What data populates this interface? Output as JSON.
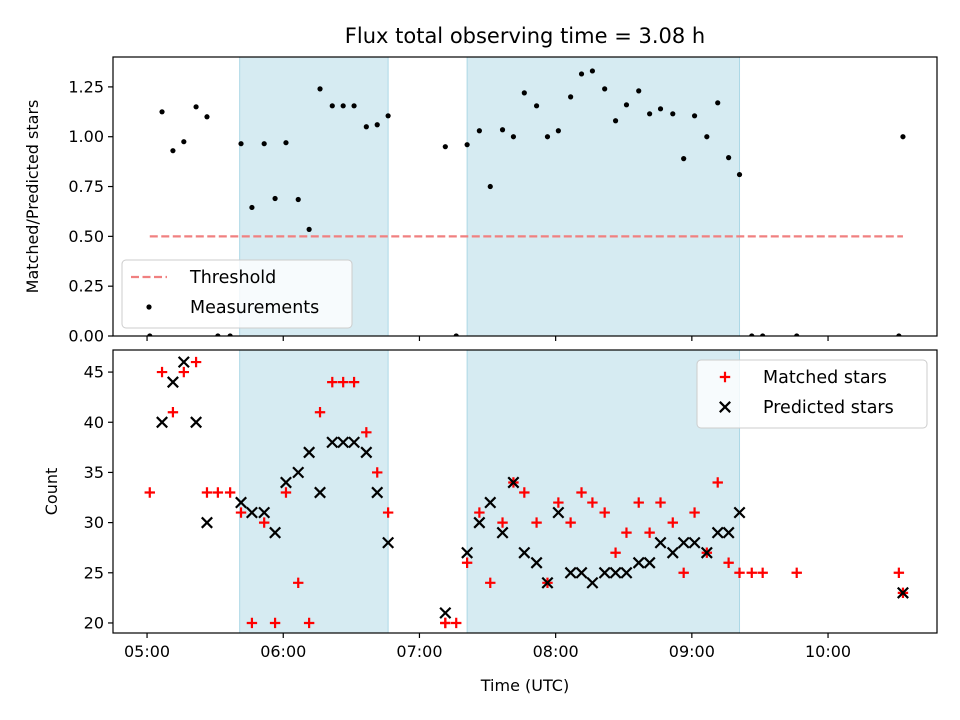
{
  "chart_data": [
    {
      "type": "scatter",
      "title": "Flux total observing time = 3.08 h",
      "ylabel": "Matched/Predicted stars",
      "xlabel": "",
      "xlim": [
        4.75,
        10.8
      ],
      "ylim": [
        0,
        1.4
      ],
      "yticks": [
        0,
        0.25,
        0.5,
        0.75,
        1.0,
        1.25
      ],
      "ytick_labels": [
        "0.00",
        "0.25",
        "0.50",
        "0.75",
        "1.00",
        "1.25"
      ],
      "shaded_spans": [
        [
          5.68,
          6.77
        ],
        [
          7.35,
          9.35
        ]
      ],
      "threshold": {
        "name": "Threshold",
        "value": 0.5,
        "x_range": [
          5.02,
          10.55
        ],
        "color": "#f08080"
      },
      "series": [
        {
          "name": "Measurements",
          "color": "#000000",
          "x": [
            5.02,
            5.11,
            5.19,
            5.27,
            5.36,
            5.44,
            5.52,
            5.61,
            5.69,
            5.77,
            5.86,
            5.94,
            6.02,
            6.11,
            6.19,
            6.27,
            6.36,
            6.44,
            6.52,
            6.61,
            6.69,
            6.77,
            7.19,
            7.27,
            7.35,
            7.44,
            7.52,
            7.61,
            7.69,
            7.77,
            7.86,
            7.94,
            8.02,
            8.11,
            8.19,
            8.27,
            8.36,
            8.44,
            8.52,
            8.61,
            8.69,
            8.77,
            8.86,
            8.94,
            9.02,
            9.11,
            9.19,
            9.27,
            9.35,
            9.44,
            9.52,
            9.77,
            10.52,
            10.55
          ],
          "y": [
            0.0,
            1.125,
            0.93,
            0.975,
            1.15,
            1.1,
            0.0,
            0.0,
            0.965,
            0.645,
            0.965,
            0.69,
            0.97,
            0.685,
            0.535,
            1.24,
            1.155,
            1.155,
            1.155,
            1.05,
            1.06,
            1.105,
            0.95,
            0.0,
            0.96,
            1.03,
            0.75,
            1.035,
            1.0,
            1.22,
            1.155,
            1.0,
            1.03,
            1.2,
            1.315,
            1.33,
            1.24,
            1.08,
            1.16,
            1.23,
            1.115,
            1.14,
            1.115,
            0.89,
            1.105,
            1.0,
            1.17,
            0.895,
            0.81,
            0.0,
            0.0,
            0.0,
            0.0,
            1.0
          ]
        }
      ],
      "legend": {
        "position": "lower-left",
        "entries": [
          "Threshold",
          "Measurements"
        ]
      }
    },
    {
      "type": "scatter",
      "title": "",
      "ylabel": "Count",
      "xlabel": "Time (UTC)",
      "xlim": [
        4.75,
        10.8
      ],
      "ylim": [
        19,
        47.2
      ],
      "yticks": [
        20,
        25,
        30,
        35,
        40,
        45
      ],
      "ytick_labels": [
        "20",
        "25",
        "30",
        "35",
        "40",
        "45"
      ],
      "xticks": [
        5,
        6,
        7,
        8,
        9,
        10
      ],
      "xtick_labels": [
        "05:00",
        "06:00",
        "07:00",
        "08:00",
        "09:00",
        "10:00"
      ],
      "shaded_spans": [
        [
          5.68,
          6.77
        ],
        [
          7.35,
          9.35
        ]
      ],
      "series": [
        {
          "name": "Matched stars",
          "marker": "plus",
          "color": "#ff0000",
          "x": [
            5.02,
            5.11,
            5.19,
            5.27,
            5.36,
            5.44,
            5.52,
            5.61,
            5.69,
            5.77,
            5.86,
            5.94,
            6.02,
            6.11,
            6.19,
            6.27,
            6.36,
            6.44,
            6.52,
            6.61,
            6.69,
            6.77,
            7.19,
            7.19,
            7.27,
            7.35,
            7.44,
            7.52,
            7.61,
            7.69,
            7.77,
            7.86,
            7.94,
            8.02,
            8.11,
            8.19,
            8.27,
            8.36,
            8.44,
            8.52,
            8.61,
            8.69,
            8.77,
            8.86,
            8.94,
            9.02,
            9.11,
            9.19,
            9.27,
            9.35,
            9.44,
            9.52,
            9.77,
            10.52,
            10.55
          ],
          "y": [
            33,
            45,
            41,
            45,
            46,
            33,
            33,
            33,
            31,
            20,
            30,
            20,
            33,
            24,
            20,
            41,
            44,
            44,
            44,
            39,
            35,
            31,
            20,
            20,
            20,
            26,
            31,
            24,
            30,
            34,
            33,
            30,
            24,
            32,
            30,
            33,
            32,
            31,
            27,
            29,
            32,
            29,
            32,
            30,
            25,
            31,
            27,
            34,
            26,
            25,
            25,
            25,
            25,
            25,
            23
          ]
        },
        {
          "name": "Predicted stars",
          "marker": "x",
          "color": "#000000",
          "x": [
            5.11,
            5.19,
            5.27,
            5.36,
            5.44,
            5.69,
            5.77,
            5.86,
            5.94,
            6.02,
            6.11,
            6.19,
            6.27,
            6.36,
            6.44,
            6.52,
            6.61,
            6.69,
            6.77,
            7.19,
            7.35,
            7.44,
            7.52,
            7.61,
            7.69,
            7.77,
            7.86,
            7.94,
            8.02,
            8.11,
            8.19,
            8.27,
            8.36,
            8.44,
            8.52,
            8.61,
            8.69,
            8.77,
            8.86,
            8.94,
            9.02,
            9.11,
            9.19,
            9.27,
            9.35,
            10.55
          ],
          "y": [
            40,
            44,
            46,
            40,
            30,
            32,
            31,
            31,
            29,
            34,
            35,
            37,
            33,
            38,
            38,
            38,
            37,
            33,
            28,
            21,
            27,
            30,
            32,
            29,
            34,
            27,
            26,
            24,
            31,
            25,
            25,
            24,
            25,
            25,
            25,
            26,
            26,
            28,
            27,
            28,
            28,
            27,
            29,
            29,
            31,
            23
          ]
        }
      ],
      "legend": {
        "position": "upper-right",
        "entries": [
          "Matched stars",
          "Predicted stars"
        ]
      }
    }
  ]
}
